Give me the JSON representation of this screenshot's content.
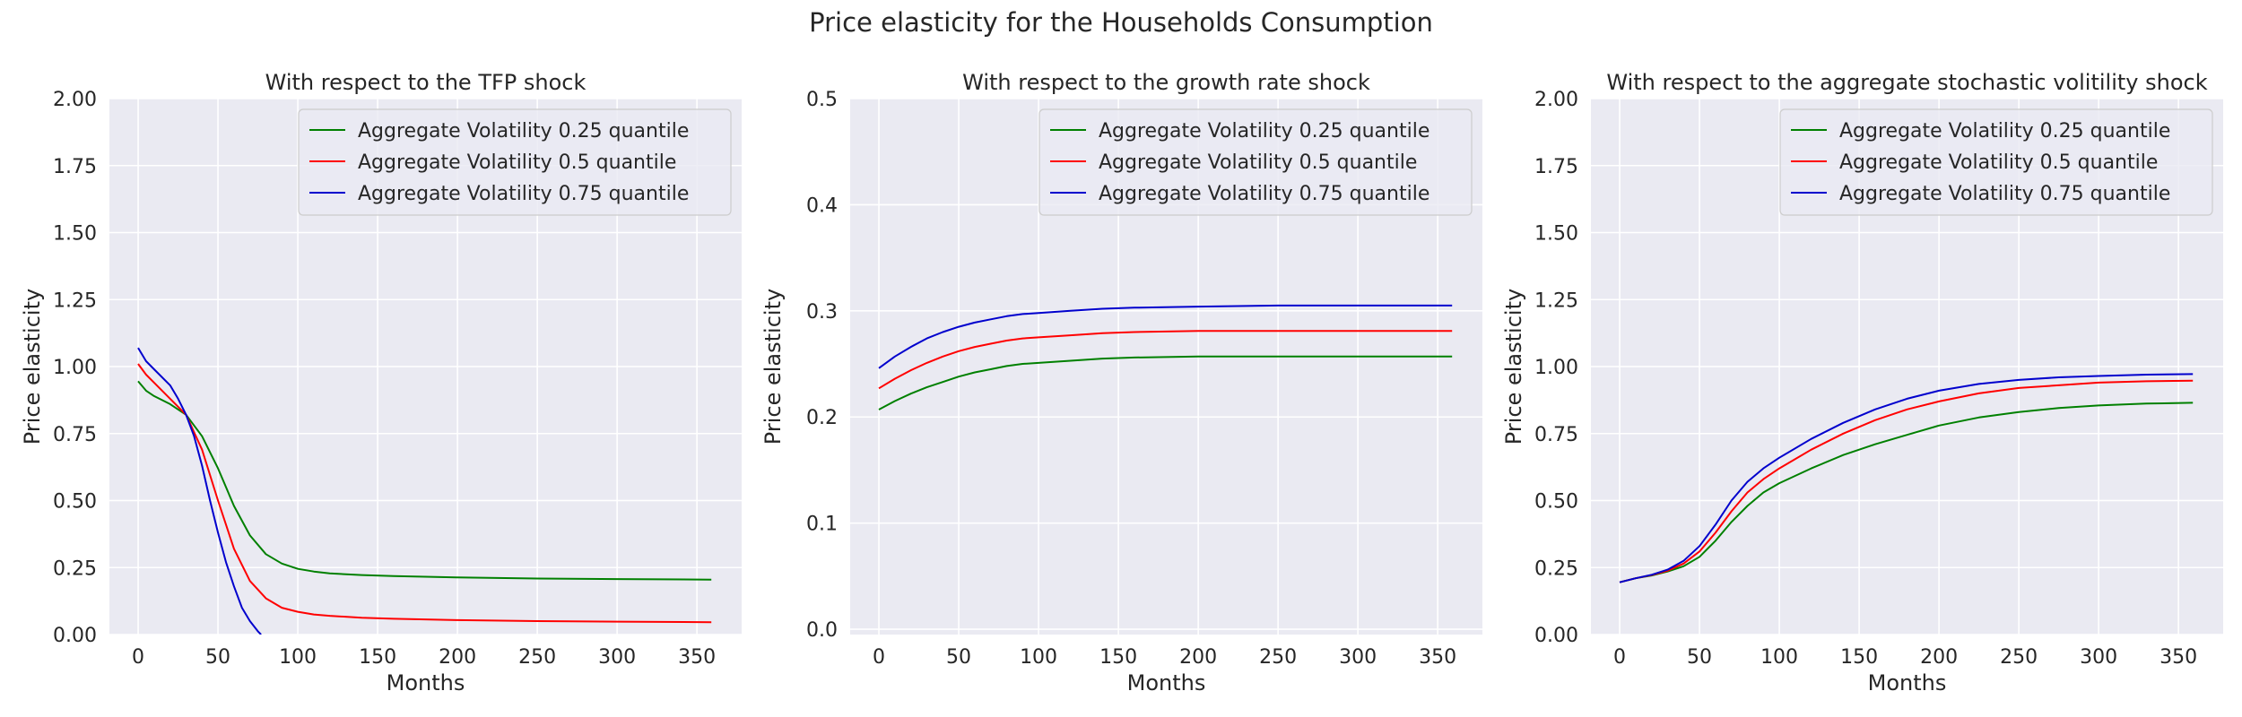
{
  "suptitle": "Price elasticity for the Households Consumption",
  "colors": {
    "background": "#eaeaf2",
    "grid": "#ffffff",
    "text": "#262626"
  },
  "chart_data": [
    {
      "type": "line",
      "title": "With respect to the TFP shock",
      "xlabel": "Months",
      "ylabel": "Price elasticity",
      "xlim": [
        -18,
        378
      ],
      "ylim": [
        0,
        2.0
      ],
      "xticks": [
        0,
        50,
        100,
        150,
        200,
        250,
        300,
        350
      ],
      "yticks": [
        0.0,
        0.25,
        0.5,
        0.75,
        1.0,
        1.25,
        1.5,
        1.75,
        2.0
      ],
      "ytick_labels": [
        "0.00",
        "0.25",
        "0.50",
        "0.75",
        "1.00",
        "1.25",
        "1.50",
        "1.75",
        "2.00"
      ],
      "grid": true,
      "legend_position": "upper right",
      "series": [
        {
          "name": "Aggregate Volatility 0.25 quantile",
          "color": "#008000",
          "x": [
            0,
            5,
            10,
            20,
            30,
            40,
            50,
            60,
            70,
            80,
            90,
            100,
            110,
            120,
            140,
            160,
            200,
            250,
            300,
            359
          ],
          "y": [
            0.945,
            0.91,
            0.89,
            0.86,
            0.82,
            0.74,
            0.62,
            0.48,
            0.37,
            0.3,
            0.265,
            0.245,
            0.235,
            0.228,
            0.222,
            0.218,
            0.213,
            0.209,
            0.207,
            0.205
          ]
        },
        {
          "name": "Aggregate Volatility 0.5 quantile",
          "color": "#ff0000",
          "x": [
            0,
            5,
            10,
            20,
            30,
            40,
            50,
            60,
            70,
            80,
            90,
            100,
            110,
            120,
            140,
            160,
            200,
            250,
            300,
            359
          ],
          "y": [
            1.01,
            0.97,
            0.94,
            0.88,
            0.82,
            0.69,
            0.5,
            0.32,
            0.2,
            0.135,
            0.1,
            0.085,
            0.075,
            0.07,
            0.063,
            0.059,
            0.054,
            0.05,
            0.048,
            0.046
          ]
        },
        {
          "name": "Aggregate Volatility 0.75 quantile",
          "color": "#0000cd",
          "x": [
            0,
            5,
            10,
            20,
            25,
            30,
            35,
            40,
            45,
            50,
            55,
            60,
            65,
            70,
            75,
            77
          ],
          "y": [
            1.07,
            1.02,
            0.99,
            0.93,
            0.88,
            0.82,
            0.74,
            0.63,
            0.5,
            0.38,
            0.27,
            0.18,
            0.1,
            0.05,
            0.012,
            0.0
          ]
        }
      ]
    },
    {
      "type": "line",
      "title": "With respect to the growth rate shock",
      "xlabel": "Months",
      "ylabel": "Price elasticity",
      "xlim": [
        -18,
        378
      ],
      "ylim": [
        -0.005,
        0.5
      ],
      "xticks": [
        0,
        50,
        100,
        150,
        200,
        250,
        300,
        350
      ],
      "yticks": [
        0.0,
        0.1,
        0.2,
        0.3,
        0.4,
        0.5
      ],
      "ytick_labels": [
        "0.0",
        "0.1",
        "0.2",
        "0.3",
        "0.4",
        "0.5"
      ],
      "grid": true,
      "legend_position": "upper right",
      "series": [
        {
          "name": "Aggregate Volatility 0.25 quantile",
          "color": "#008000",
          "x": [
            0,
            10,
            20,
            30,
            40,
            50,
            60,
            70,
            80,
            90,
            100,
            120,
            140,
            160,
            200,
            250,
            300,
            359
          ],
          "y": [
            0.207,
            0.215,
            0.222,
            0.228,
            0.233,
            0.238,
            0.242,
            0.245,
            0.248,
            0.25,
            0.251,
            0.253,
            0.255,
            0.256,
            0.257,
            0.257,
            0.257,
            0.257
          ]
        },
        {
          "name": "Aggregate Volatility 0.5 quantile",
          "color": "#ff0000",
          "x": [
            0,
            10,
            20,
            30,
            40,
            50,
            60,
            70,
            80,
            90,
            100,
            120,
            140,
            160,
            200,
            250,
            300,
            359
          ],
          "y": [
            0.227,
            0.236,
            0.244,
            0.251,
            0.257,
            0.262,
            0.266,
            0.269,
            0.272,
            0.274,
            0.275,
            0.277,
            0.279,
            0.28,
            0.281,
            0.281,
            0.281,
            0.281
          ]
        },
        {
          "name": "Aggregate Volatility 0.75 quantile",
          "color": "#0000cd",
          "x": [
            0,
            10,
            20,
            30,
            40,
            50,
            60,
            70,
            80,
            90,
            100,
            120,
            140,
            160,
            200,
            250,
            300,
            359
          ],
          "y": [
            0.246,
            0.257,
            0.266,
            0.274,
            0.28,
            0.285,
            0.289,
            0.292,
            0.295,
            0.297,
            0.298,
            0.3,
            0.302,
            0.303,
            0.304,
            0.305,
            0.305,
            0.305
          ]
        }
      ]
    },
    {
      "type": "line",
      "title": "With respect to the aggregate stochastic volitility shock",
      "xlabel": "Months",
      "ylabel": "Price elasticity",
      "xlim": [
        -18,
        378
      ],
      "ylim": [
        0,
        2.0
      ],
      "xticks": [
        0,
        50,
        100,
        150,
        200,
        250,
        300,
        350
      ],
      "yticks": [
        0.0,
        0.25,
        0.5,
        0.75,
        1.0,
        1.25,
        1.5,
        1.75,
        2.0
      ],
      "ytick_labels": [
        "0.00",
        "0.25",
        "0.50",
        "0.75",
        "1.00",
        "1.25",
        "1.50",
        "1.75",
        "2.00"
      ],
      "grid": true,
      "legend_position": "upper right",
      "series": [
        {
          "name": "Aggregate Volatility 0.25 quantile",
          "color": "#008000",
          "x": [
            0,
            10,
            20,
            30,
            40,
            50,
            60,
            70,
            80,
            90,
            100,
            120,
            140,
            160,
            180,
            200,
            225,
            250,
            275,
            300,
            330,
            359
          ],
          "y": [
            0.195,
            0.21,
            0.22,
            0.235,
            0.255,
            0.29,
            0.35,
            0.42,
            0.48,
            0.53,
            0.565,
            0.62,
            0.67,
            0.71,
            0.745,
            0.78,
            0.81,
            0.83,
            0.845,
            0.855,
            0.862,
            0.865
          ]
        },
        {
          "name": "Aggregate Volatility 0.5 quantile",
          "color": "#ff0000",
          "x": [
            0,
            10,
            20,
            30,
            40,
            50,
            60,
            70,
            80,
            90,
            100,
            120,
            140,
            160,
            180,
            200,
            225,
            250,
            275,
            300,
            330,
            359
          ],
          "y": [
            0.195,
            0.21,
            0.222,
            0.238,
            0.265,
            0.31,
            0.38,
            0.46,
            0.53,
            0.58,
            0.62,
            0.69,
            0.75,
            0.8,
            0.84,
            0.87,
            0.9,
            0.92,
            0.93,
            0.94,
            0.945,
            0.947
          ]
        },
        {
          "name": "Aggregate Volatility 0.75 quantile",
          "color": "#0000cd",
          "x": [
            0,
            10,
            20,
            30,
            40,
            50,
            60,
            70,
            80,
            90,
            100,
            120,
            140,
            160,
            180,
            200,
            225,
            250,
            275,
            300,
            330,
            359
          ],
          "y": [
            0.195,
            0.21,
            0.223,
            0.242,
            0.275,
            0.33,
            0.41,
            0.5,
            0.57,
            0.62,
            0.66,
            0.73,
            0.79,
            0.84,
            0.88,
            0.91,
            0.935,
            0.95,
            0.96,
            0.965,
            0.97,
            0.972
          ]
        }
      ]
    }
  ]
}
